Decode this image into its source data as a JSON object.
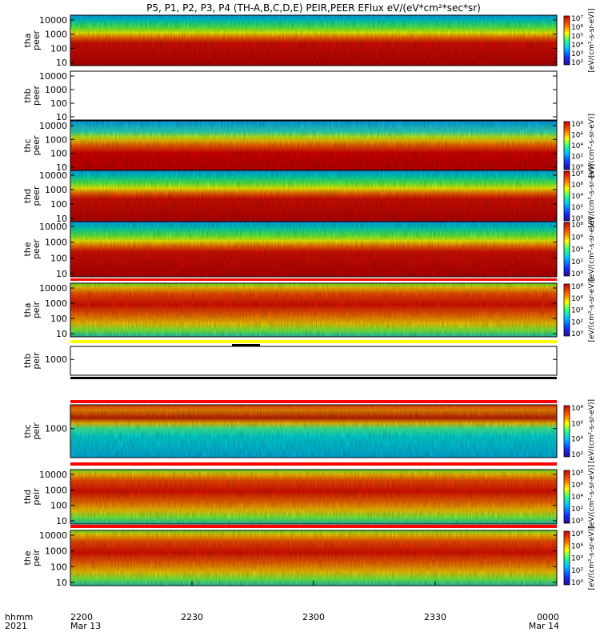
{
  "chart_data": {
    "type": "heatmap",
    "title": "P5, P1, P2, P3, P4 (TH-A,B,C,D,E) PEIR,PEER EFlux eV/(eV*cm²*sec*sr)",
    "x_axis": {
      "label_line1": "hhmm",
      "label_line2": "2021",
      "ticks": [
        {
          "label": "2200",
          "sub": "Mar 13"
        },
        {
          "label": "2230",
          "sub": ""
        },
        {
          "label": "2300",
          "sub": ""
        },
        {
          "label": "2330",
          "sub": ""
        },
        {
          "label": "0000",
          "sub": "Mar 14"
        }
      ]
    },
    "panels": [
      {
        "label": "tha\npeer",
        "yticks": [
          "10000",
          "1000",
          "100",
          "10"
        ],
        "cbar": [
          "10⁷",
          "10⁶",
          "10⁵",
          "10⁴",
          "10³",
          "10²"
        ],
        "cbar_title": "[eV/(cm²-s-sr-eV)]",
        "style": "peer",
        "empty": false
      },
      {
        "label": "thb\npeer",
        "yticks": [
          "10000",
          "1000",
          "100",
          "10"
        ],
        "cbar": [],
        "cbar_title": "",
        "style": "none",
        "empty": true
      },
      {
        "label": "thc\npeer",
        "yticks": [
          "10000",
          "1000",
          "100",
          "10"
        ],
        "cbar": [
          "10⁸",
          "10⁶",
          "10⁴",
          "10²",
          "10⁰"
        ],
        "cbar_title": "[eV/(cm²-s-sr-eV)]",
        "style": "peerc",
        "empty": false
      },
      {
        "label": "thd\npeer",
        "yticks": [
          "10000",
          "1000",
          "100",
          "10"
        ],
        "cbar": [
          "10⁸",
          "10⁶",
          "10⁴",
          "10²",
          "10⁰"
        ],
        "cbar_title": "[eV/(cm²-s-sr-eV)]",
        "style": "peer",
        "empty": false
      },
      {
        "label": "the\npeer",
        "yticks": [
          "10000",
          "1000",
          "100",
          "10"
        ],
        "cbar": [
          "10⁸",
          "10⁶",
          "10⁴",
          "10²",
          "10⁰"
        ],
        "cbar_title": "[eV/(cm²-s-sr-eV)]",
        "style": "peer",
        "empty": false
      },
      {
        "label": "tha\npeir",
        "yticks": [
          "10000",
          "1000",
          "100",
          "10"
        ],
        "cbar": [
          "10⁸",
          "10⁶",
          "10⁴",
          "10²",
          "10⁰"
        ],
        "cbar_title": "[eV/(cm²-s-sr-eV)]",
        "style": "peir",
        "empty": false
      },
      {
        "label": "thb\npeir",
        "yticks": [
          "1000"
        ],
        "cbar": [],
        "cbar_title": "",
        "style": "none",
        "empty": true
      },
      {
        "label": "thc\npeir",
        "yticks": [
          "1000"
        ],
        "cbar": [
          "10⁸",
          "10⁶",
          "10⁴",
          "10²"
        ],
        "cbar_title": "[eV/(cm²-s-sr-eV)]",
        "style": "peirc",
        "empty": false
      },
      {
        "label": "thd\npeir",
        "yticks": [
          "10000",
          "1000",
          "100",
          "10"
        ],
        "cbar": [
          "10⁸",
          "10⁶",
          "10⁴",
          "10²",
          "10⁰"
        ],
        "cbar_title": "[eV/(cm²-s-sr-eV)]",
        "style": "peir",
        "empty": false
      },
      {
        "label": "the\npeir",
        "yticks": [
          "10000",
          "1000",
          "100",
          "10"
        ],
        "cbar": [
          "10⁸",
          "10⁶",
          "10⁴",
          "10²",
          "10⁰"
        ],
        "cbar_title": "[eV/(cm²-s-sr-eV)]",
        "style": "peir",
        "empty": false
      }
    ],
    "grid": false,
    "legend": "right"
  }
}
